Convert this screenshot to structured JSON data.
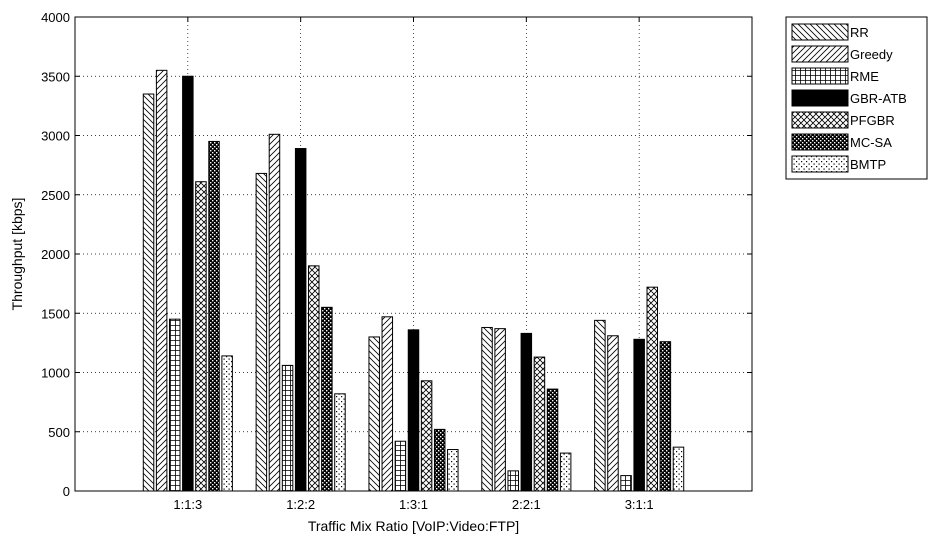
{
  "chart_data": {
    "type": "bar",
    "xlabel": "Traffic Mix Ratio [VoIP:Video:FTP]",
    "ylabel": "Throughput [kbps]",
    "ylim": [
      0,
      4000
    ],
    "yticks": [
      0,
      500,
      1000,
      1500,
      2000,
      2500,
      3000,
      3500,
      4000
    ],
    "grid": true,
    "legend_position": "outside-top-right",
    "categories": [
      "1:1:3",
      "1:2:2",
      "1:3:1",
      "2:2:1",
      "3:1:1"
    ],
    "series": [
      {
        "name": "RR",
        "pattern": "backslash",
        "values": [
          3350,
          2680,
          1300,
          1380,
          1440
        ]
      },
      {
        "name": "Greedy",
        "pattern": "slash",
        "values": [
          3550,
          3010,
          1470,
          1370,
          1310
        ]
      },
      {
        "name": "RME",
        "pattern": "grid",
        "values": [
          1450,
          1060,
          420,
          170,
          130
        ]
      },
      {
        "name": "GBR-ATB",
        "pattern": "solid-black",
        "values": [
          3500,
          2890,
          1360,
          1330,
          1280
        ]
      },
      {
        "name": "PFGBR",
        "pattern": "crosshatch",
        "values": [
          2610,
          1900,
          930,
          1130,
          1720
        ]
      },
      {
        "name": "MC-SA",
        "pattern": "dense-dots",
        "values": [
          2950,
          1550,
          520,
          860,
          1260
        ]
      },
      {
        "name": "BMTP",
        "pattern": "sparse-dots",
        "values": [
          1140,
          820,
          350,
          320,
          370
        ]
      }
    ]
  }
}
